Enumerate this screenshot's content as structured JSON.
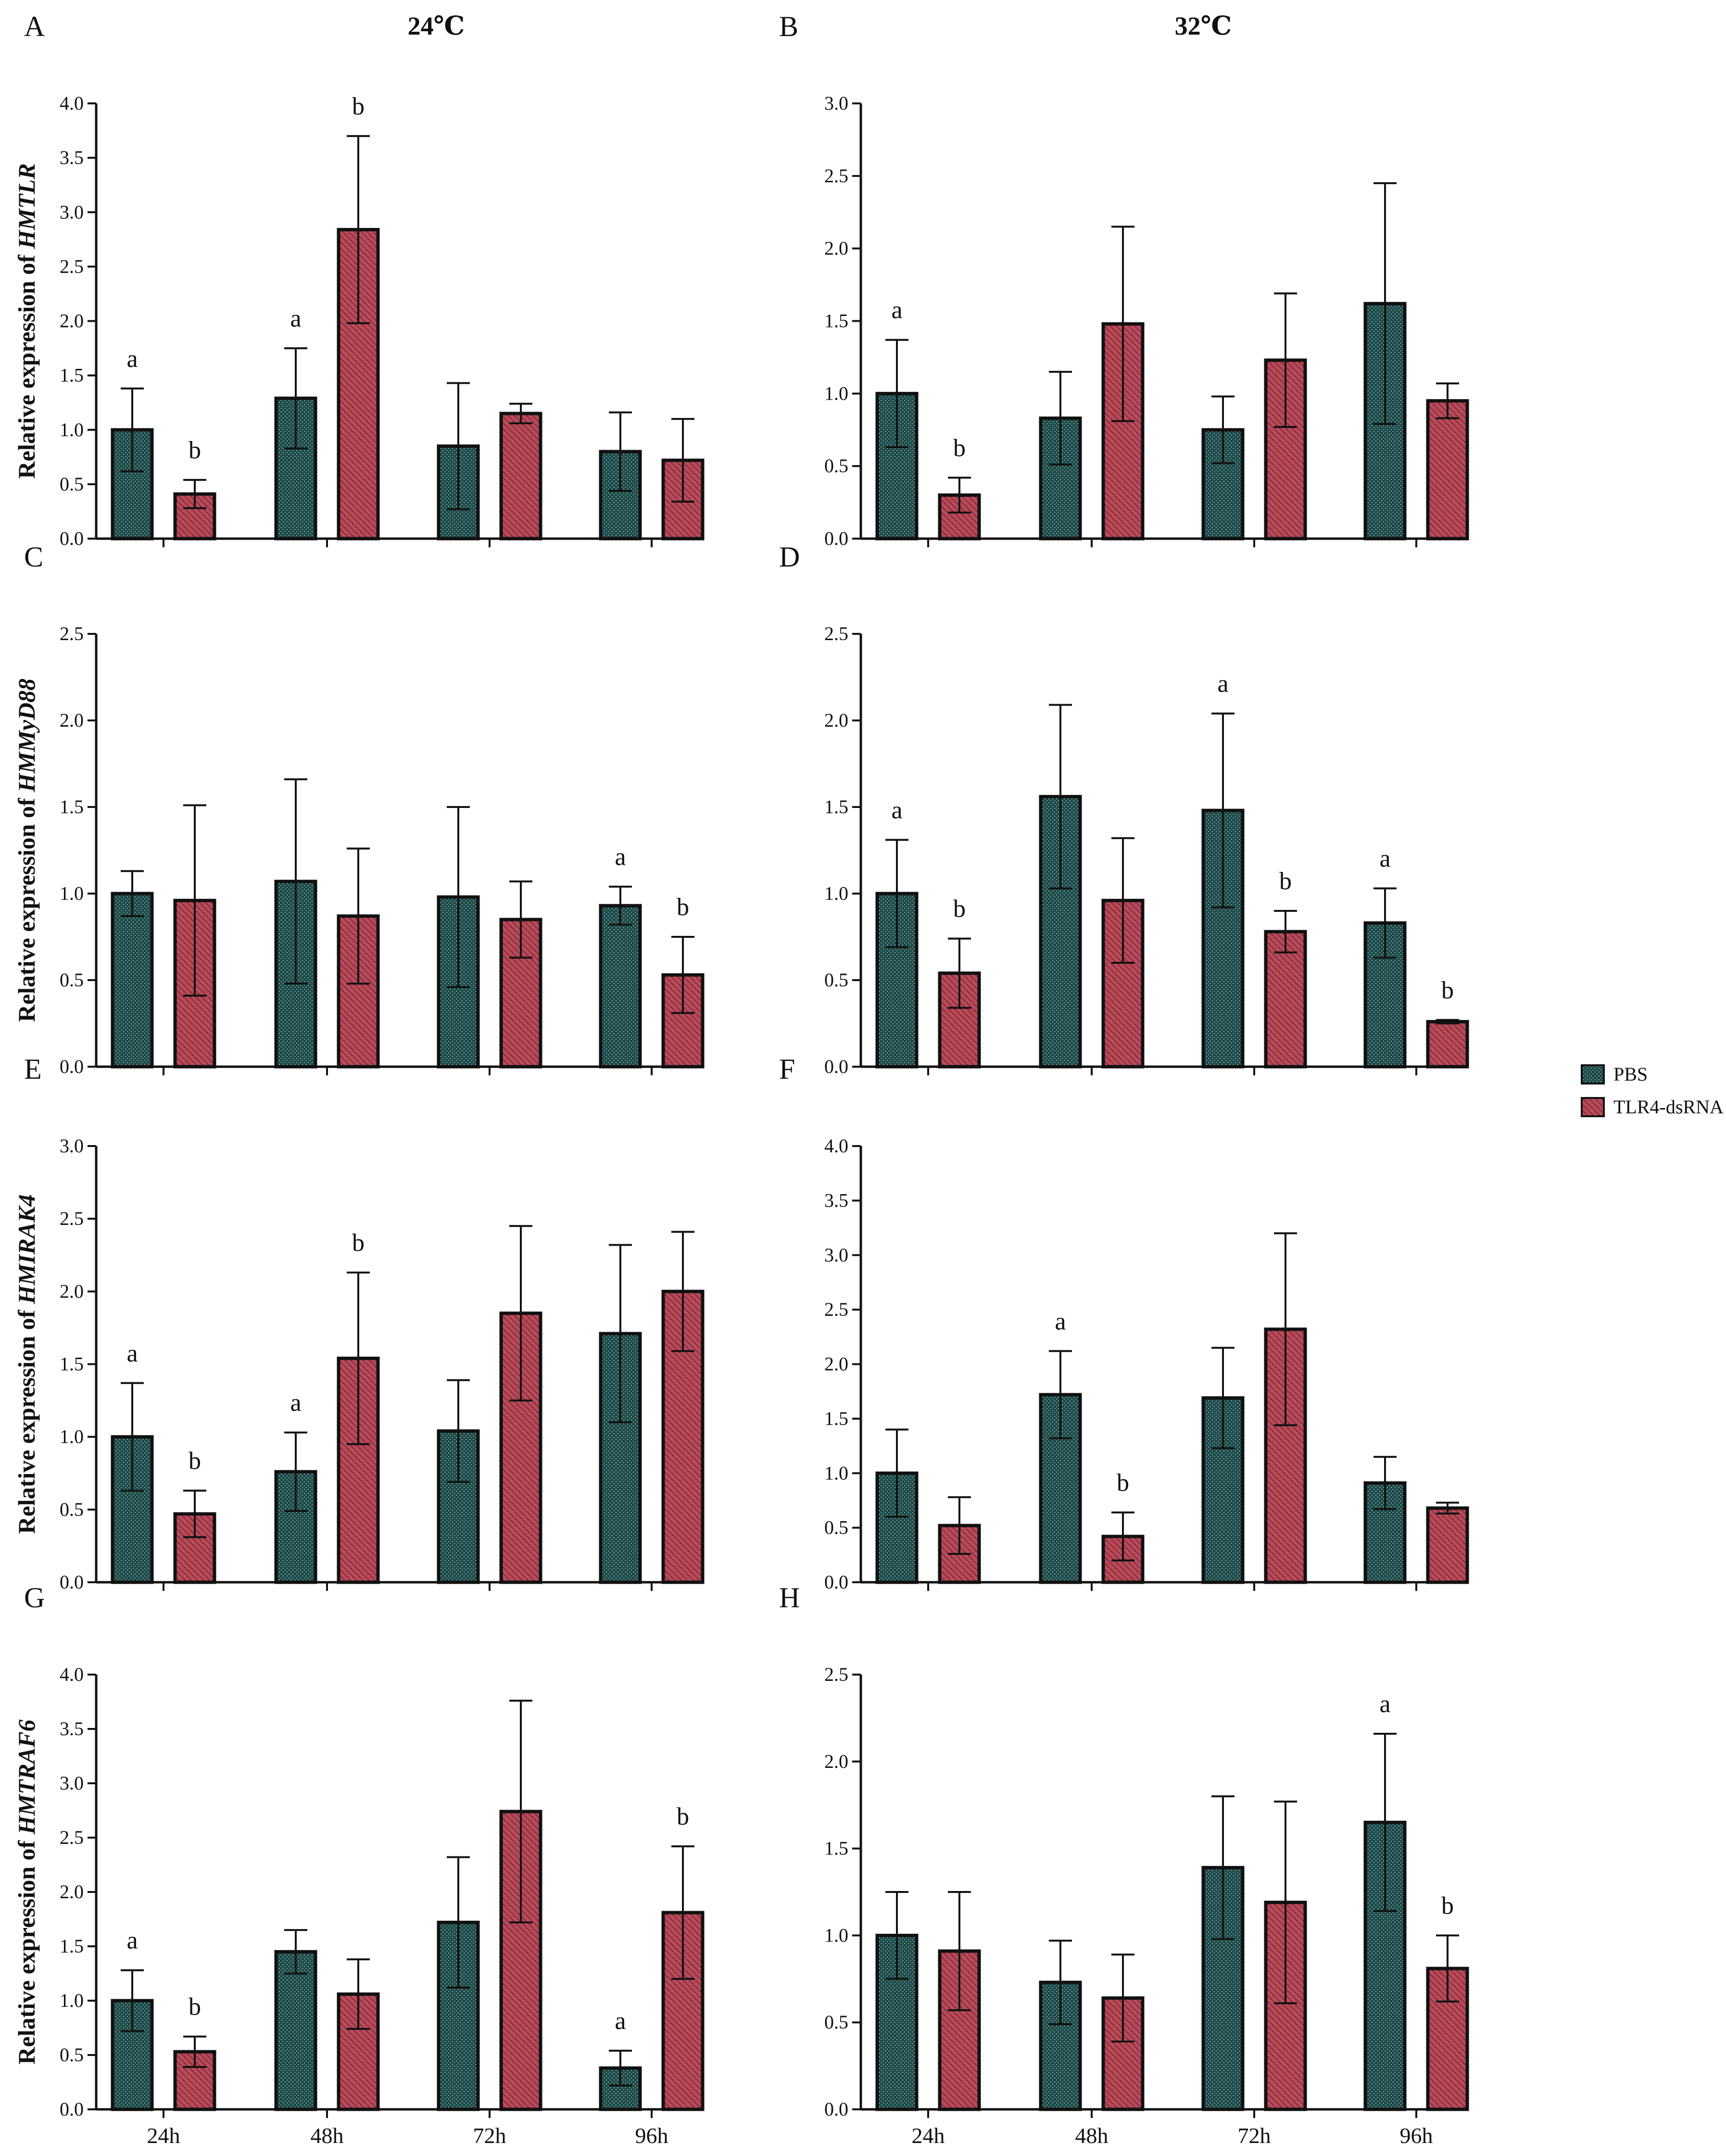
{
  "headers": {
    "left": "24℃",
    "right": "32℃"
  },
  "legend": [
    {
      "label": "PBS",
      "color": "#1c4a49"
    },
    {
      "label": "TLR4-dsRNA",
      "color": "#b94a5a"
    }
  ],
  "colors": {
    "pbs": "#1c4a49",
    "tlr4": "#b94a5a",
    "axis": "#111111"
  },
  "chart_data": [
    {
      "panel": "A",
      "type": "bar",
      "ylabel_prefix": "Relative expression of ",
      "gene": "HMTLR",
      "categories": [
        "24h",
        "48h",
        "72h",
        "96h"
      ],
      "show_xticklabels": false,
      "ylim": [
        0,
        4.0
      ],
      "yticks": [
        "0.0",
        "0.5",
        "1.0",
        "1.5",
        "2.0",
        "2.5",
        "3.0",
        "3.5",
        "4.0"
      ],
      "series": [
        {
          "name": "PBS",
          "values": [
            1.0,
            1.29,
            0.85,
            0.8
          ],
          "errors": [
            0.38,
            0.46,
            0.58,
            0.36
          ],
          "letters": [
            "a",
            "a",
            "",
            ""
          ]
        },
        {
          "name": "TLR4-dsRNA",
          "values": [
            0.41,
            2.84,
            1.15,
            0.72
          ],
          "errors": [
            0.13,
            0.86,
            0.09,
            0.38
          ],
          "letters": [
            "b",
            "b",
            "",
            ""
          ]
        }
      ]
    },
    {
      "panel": "B",
      "type": "bar",
      "ylabel_prefix": "",
      "gene": "",
      "categories": [
        "24h",
        "48h",
        "72h",
        "96h"
      ],
      "show_xticklabels": false,
      "ylim": [
        0,
        3.0
      ],
      "yticks": [
        "0.0",
        "0.5",
        "1.0",
        "1.5",
        "2.0",
        "2.5",
        "3.0"
      ],
      "series": [
        {
          "name": "PBS",
          "values": [
            1.0,
            0.83,
            0.75,
            1.62
          ],
          "errors": [
            0.37,
            0.32,
            0.23,
            0.83
          ],
          "letters": [
            "a",
            "",
            "",
            ""
          ]
        },
        {
          "name": "TLR4-dsRNA",
          "values": [
            0.3,
            1.48,
            1.23,
            0.95
          ],
          "errors": [
            0.12,
            0.67,
            0.46,
            0.12
          ],
          "letters": [
            "b",
            "",
            "",
            ""
          ]
        }
      ]
    },
    {
      "panel": "C",
      "type": "bar",
      "ylabel_prefix": "Relative expression of ",
      "gene": "HMMyD88",
      "categories": [
        "24h",
        "48h",
        "72h",
        "96h"
      ],
      "show_xticklabels": false,
      "ylim": [
        0,
        2.5
      ],
      "yticks": [
        "0.0",
        "0.5",
        "1.0",
        "1.5",
        "2.0",
        "2.5"
      ],
      "series": [
        {
          "name": "PBS",
          "values": [
            1.0,
            1.07,
            0.98,
            0.93
          ],
          "errors": [
            0.13,
            0.59,
            0.52,
            0.11
          ],
          "letters": [
            "",
            "",
            "",
            "a"
          ]
        },
        {
          "name": "TLR4-dsRNA",
          "values": [
            0.96,
            0.87,
            0.85,
            0.53
          ],
          "errors": [
            0.55,
            0.39,
            0.22,
            0.22
          ],
          "letters": [
            "",
            "",
            "",
            "b"
          ]
        }
      ]
    },
    {
      "panel": "D",
      "type": "bar",
      "ylabel_prefix": "",
      "gene": "",
      "categories": [
        "24h",
        "48h",
        "72h",
        "96h"
      ],
      "show_xticklabels": false,
      "ylim": [
        0,
        2.5
      ],
      "yticks": [
        "0.0",
        "0.5",
        "1.0",
        "1.5",
        "2.0",
        "2.5"
      ],
      "series": [
        {
          "name": "PBS",
          "values": [
            1.0,
            1.56,
            1.48,
            0.83
          ],
          "errors": [
            0.31,
            0.53,
            0.56,
            0.2
          ],
          "letters": [
            "a",
            "",
            "a",
            "a"
          ]
        },
        {
          "name": "TLR4-dsRNA",
          "values": [
            0.54,
            0.96,
            0.78,
            0.26
          ],
          "errors": [
            0.2,
            0.36,
            0.12,
            0.01
          ],
          "letters": [
            "b",
            "",
            "b",
            "b"
          ]
        }
      ]
    },
    {
      "panel": "E",
      "type": "bar",
      "ylabel_prefix": "Relative expression of ",
      "gene": "HMIRAK4",
      "categories": [
        "24h",
        "48h",
        "72h",
        "96h"
      ],
      "show_xticklabels": false,
      "ylim": [
        0,
        3.0
      ],
      "yticks": [
        "0.0",
        "0.5",
        "1.0",
        "1.5",
        "2.0",
        "2.5",
        "3.0"
      ],
      "series": [
        {
          "name": "PBS",
          "values": [
            1.0,
            0.76,
            1.04,
            1.71
          ],
          "errors": [
            0.37,
            0.27,
            0.35,
            0.61
          ],
          "letters": [
            "a",
            "a",
            "",
            ""
          ]
        },
        {
          "name": "TLR4-dsRNA",
          "values": [
            0.47,
            1.54,
            1.85,
            2.0
          ],
          "errors": [
            0.16,
            0.59,
            0.6,
            0.41
          ],
          "letters": [
            "b",
            "b",
            "",
            ""
          ]
        }
      ]
    },
    {
      "panel": "F",
      "type": "bar",
      "ylabel_prefix": "",
      "gene": "",
      "categories": [
        "24h",
        "48h",
        "72h",
        "96h"
      ],
      "show_xticklabels": false,
      "ylim": [
        0,
        4.0
      ],
      "yticks": [
        "0.0",
        "0.5",
        "1.0",
        "1.5",
        "2.0",
        "2.5",
        "3.0",
        "3.5",
        "4.0"
      ],
      "series": [
        {
          "name": "PBS",
          "values": [
            1.0,
            1.72,
            1.69,
            0.91
          ],
          "errors": [
            0.4,
            0.4,
            0.46,
            0.24
          ],
          "letters": [
            "",
            "a",
            "",
            ""
          ]
        },
        {
          "name": "TLR4-dsRNA",
          "values": [
            0.52,
            0.42,
            2.32,
            0.68
          ],
          "errors": [
            0.26,
            0.22,
            0.88,
            0.05
          ],
          "letters": [
            "",
            "b",
            "",
            ""
          ]
        }
      ]
    },
    {
      "panel": "G",
      "type": "bar",
      "ylabel_prefix": "Relative expression of ",
      "gene": "HMTRAF6",
      "categories": [
        "24h",
        "48h",
        "72h",
        "96h"
      ],
      "show_xticklabels": true,
      "ylim": [
        0,
        4.0
      ],
      "yticks": [
        "0.0",
        "0.5",
        "1.0",
        "1.5",
        "2.0",
        "2.5",
        "3.0",
        "3.5",
        "4.0"
      ],
      "series": [
        {
          "name": "PBS",
          "values": [
            1.0,
            1.45,
            1.72,
            0.38
          ],
          "errors": [
            0.28,
            0.2,
            0.6,
            0.16
          ],
          "letters": [
            "a",
            "",
            "",
            "a"
          ]
        },
        {
          "name": "TLR4-dsRNA",
          "values": [
            0.53,
            1.06,
            2.74,
            1.81
          ],
          "errors": [
            0.14,
            0.32,
            1.02,
            0.61
          ],
          "letters": [
            "b",
            "",
            "",
            "b"
          ]
        }
      ]
    },
    {
      "panel": "H",
      "type": "bar",
      "ylabel_prefix": "",
      "gene": "",
      "categories": [
        "24h",
        "48h",
        "72h",
        "96h"
      ],
      "show_xticklabels": true,
      "ylim": [
        0,
        2.5
      ],
      "yticks": [
        "0.0",
        "0.5",
        "1.0",
        "1.5",
        "2.0",
        "2.5"
      ],
      "series": [
        {
          "name": "PBS",
          "values": [
            1.0,
            0.73,
            1.39,
            1.65
          ],
          "errors": [
            0.25,
            0.24,
            0.41,
            0.51
          ],
          "letters": [
            "",
            "",
            "",
            "a"
          ]
        },
        {
          "name": "TLR4-dsRNA",
          "values": [
            0.91,
            0.64,
            1.19,
            0.81
          ],
          "errors": [
            0.34,
            0.25,
            0.58,
            0.19
          ],
          "letters": [
            "",
            "",
            "",
            "b"
          ]
        }
      ]
    }
  ]
}
